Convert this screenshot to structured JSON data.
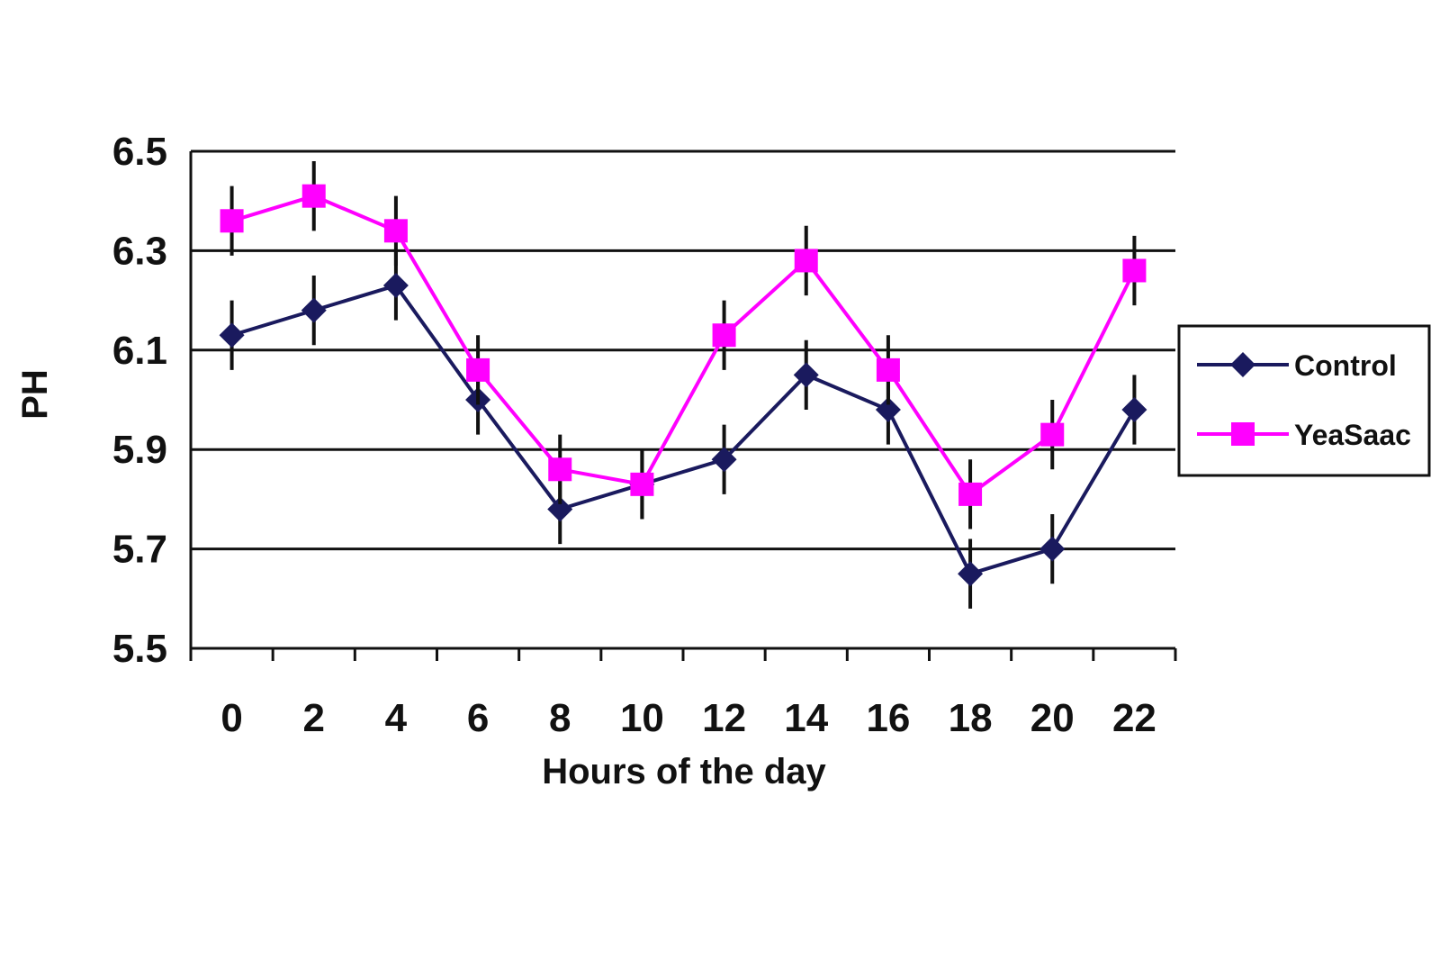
{
  "chart_data": {
    "type": "line",
    "title": "",
    "xlabel": "Hours of the day",
    "ylabel": "PH",
    "categories": [
      "0",
      "2",
      "4",
      "6",
      "8",
      "10",
      "12",
      "14",
      "16",
      "18",
      "20",
      "22"
    ],
    "ylim": [
      5.5,
      6.5
    ],
    "yticks": [
      "5.5",
      "5.7",
      "5.9",
      "6.1",
      "6.3",
      "6.5"
    ],
    "grid": true,
    "legend_position": "right",
    "series": [
      {
        "name": "Control",
        "color": "#1a1a5e",
        "marker": "diamond",
        "values": [
          6.13,
          6.18,
          6.23,
          6.0,
          5.78,
          5.83,
          5.88,
          6.05,
          5.98,
          5.65,
          5.7,
          5.98
        ],
        "errors": [
          0.07,
          0.07,
          0.07,
          0.07,
          0.07,
          0.07,
          0.07,
          0.07,
          0.07,
          0.07,
          0.07,
          0.07
        ]
      },
      {
        "name": "YeaSaac",
        "color": "#ff00ff",
        "marker": "square",
        "values": [
          6.36,
          6.41,
          6.34,
          6.06,
          5.86,
          5.83,
          6.13,
          6.28,
          6.06,
          5.81,
          5.93,
          6.26
        ],
        "errors": [
          0.07,
          0.07,
          0.07,
          0.07,
          0.07,
          0.07,
          0.07,
          0.07,
          0.07,
          0.07,
          0.07,
          0.07
        ]
      }
    ]
  }
}
